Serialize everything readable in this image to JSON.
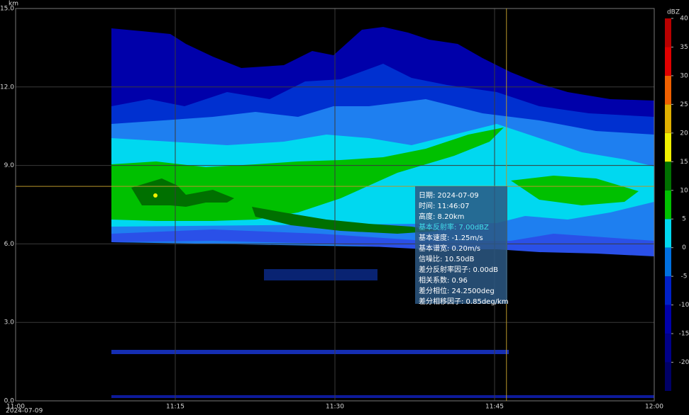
{
  "chart_data": {
    "type": "heatmap",
    "y_label": "km",
    "date": "2024-07-09",
    "xlim": [
      "11:00",
      "12:00"
    ],
    "xticks": [
      "11:00",
      "11:15",
      "11:30",
      "11:45",
      "12:00"
    ],
    "ylim": [
      0,
      15
    ],
    "yticks": [
      {
        "value": 0,
        "label": "0.0"
      },
      {
        "value": 3,
        "label": "3.0"
      },
      {
        "value": 6,
        "label": "6.0"
      },
      {
        "value": 9,
        "label": "9.0"
      },
      {
        "value": 12,
        "label": "12.0"
      },
      {
        "value": 15,
        "label": "15.0"
      }
    ],
    "grid": true,
    "colorbar": {
      "label": "dBZ",
      "clim": [
        -25,
        40
      ],
      "ticks": [
        -20,
        -15,
        -10,
        -5,
        0,
        5,
        10,
        15,
        20,
        25,
        30,
        35,
        40
      ],
      "colors": [
        "#000066",
        "#000088",
        "#0000aa",
        "#0020c8",
        "#0070e0",
        "#00d8f0",
        "#00c000",
        "#007000",
        "#f0f000",
        "#e0b000",
        "#f06000",
        "#e00000",
        "#b80000"
      ]
    },
    "tooltip": {
      "rows": [
        "日期: 2024-07-09",
        "时间: 11:46:07",
        "高度: 8.20km",
        "基本反射率: 7.00dBZ",
        "基本速度: -1.25m/s",
        "基本谱宽: 0.20m/s",
        "信噪比: 10.50dB",
        "差分反射率因子: 0.00dB",
        "相关系数: 0.96",
        "差分相位: 24.2500deg",
        "差分相移因子: 0.85deg/km"
      ],
      "highlight_row": 3,
      "highlight_color": "#40e0e8"
    }
  }
}
